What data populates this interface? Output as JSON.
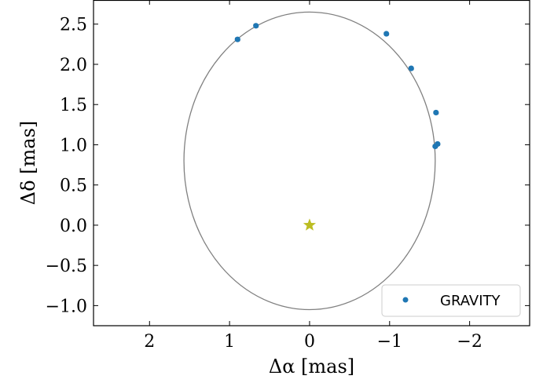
{
  "chart_data": {
    "type": "scatter",
    "xlabel": "Δα [mas]",
    "ylabel": "Δδ [mas]",
    "xlim": [
      2.7,
      -2.75
    ],
    "ylim": [
      -1.25,
      2.8
    ],
    "x_ticks": [
      2,
      1,
      0,
      -1,
      -2
    ],
    "x_tick_labels": [
      "2",
      "1",
      "0",
      "−1",
      "−2"
    ],
    "y_ticks": [
      -1.0,
      -0.5,
      0.0,
      0.5,
      1.0,
      1.5,
      2.0,
      2.5
    ],
    "y_tick_labels": [
      "−1.0",
      "−0.5",
      "0.0",
      "0.5",
      "1.0",
      "1.5",
      "2.0",
      "2.5"
    ],
    "grid": false,
    "legend_position": "lower-right",
    "series": [
      {
        "name": "GRAVITY",
        "color": "#1f77b4",
        "points": [
          {
            "x": 0.9,
            "y": 2.31
          },
          {
            "x": 0.67,
            "y": 2.48
          },
          {
            "x": -0.96,
            "y": 2.38
          },
          {
            "x": -1.27,
            "y": 1.95
          },
          {
            "x": -1.58,
            "y": 1.4
          },
          {
            "x": -1.6,
            "y": 1.01
          },
          {
            "x": -1.57,
            "y": 0.98
          }
        ]
      }
    ],
    "orbit": {
      "color": "#808080",
      "center": [
        0.0,
        0.8
      ],
      "semi_x": 1.57,
      "semi_y": 1.85
    },
    "central_star": {
      "x": 0.0,
      "y": 0.0,
      "color": "#bcbd22",
      "icon": "star-icon"
    }
  }
}
